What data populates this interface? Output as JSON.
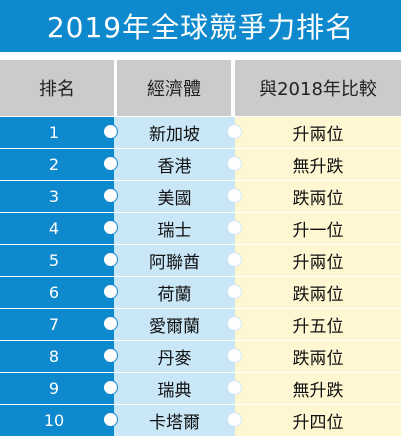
{
  "title": "2019年全球競爭力排名",
  "headers": {
    "rank": "排名",
    "economy": "經濟體",
    "change": "與2018年比較"
  },
  "rows": [
    {
      "rank": "1",
      "economy": "新加坡",
      "change": "升兩位"
    },
    {
      "rank": "2",
      "economy": "香港",
      "change": "無升跌"
    },
    {
      "rank": "3",
      "economy": "美國",
      "change": "跌兩位"
    },
    {
      "rank": "4",
      "economy": "瑞士",
      "change": "升一位"
    },
    {
      "rank": "5",
      "economy": "阿聯酋",
      "change": "升兩位"
    },
    {
      "rank": "6",
      "economy": "荷蘭",
      "change": "跌兩位"
    },
    {
      "rank": "7",
      "economy": "愛爾蘭",
      "change": "升五位"
    },
    {
      "rank": "8",
      "economy": "丹麥",
      "change": "跌兩位"
    },
    {
      "rank": "9",
      "economy": "瑞典",
      "change": "無升跌"
    },
    {
      "rank": "10",
      "economy": "卡塔爾",
      "change": "升四位"
    }
  ],
  "colors": {
    "accent": "#0e89cd",
    "header": "#cbcbcb",
    "economy_bg": "#c9e7f7",
    "change_bg": "#fef7d2"
  }
}
